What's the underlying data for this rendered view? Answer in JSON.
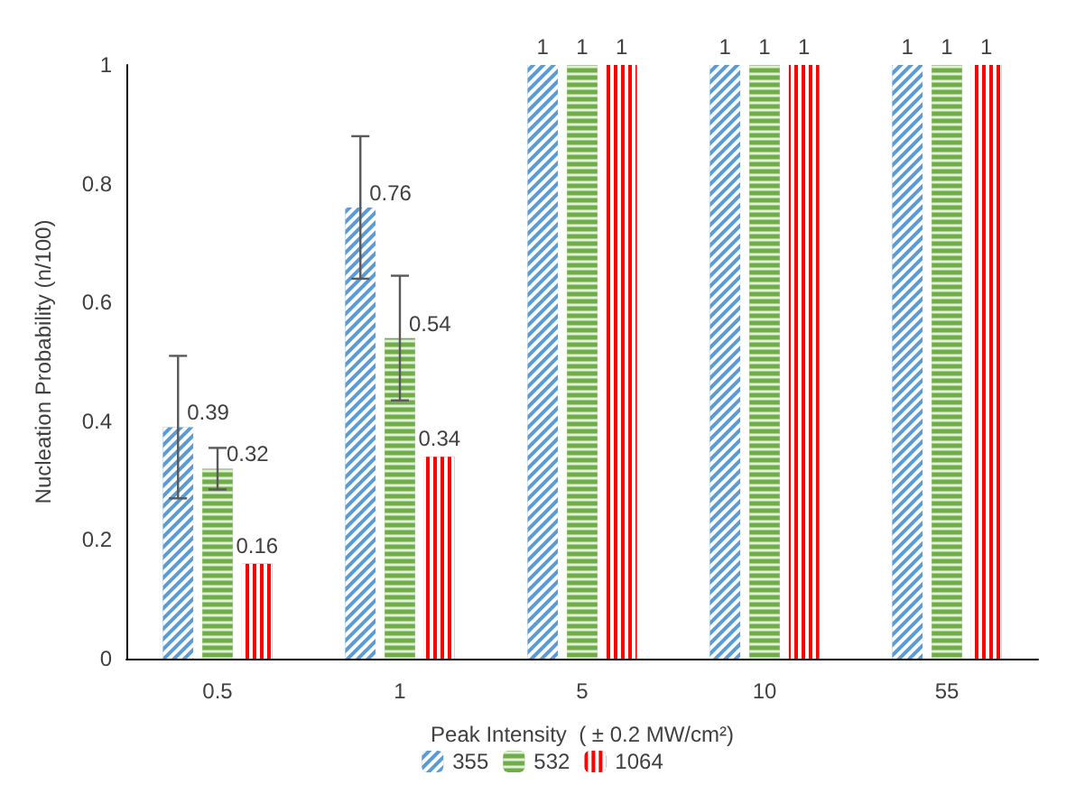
{
  "chart_data": {
    "type": "bar",
    "xlabel": "Peak Intensity  ( ± 0.2 MW/cm²)",
    "ylabel": "Nucleation Probability (n/100)",
    "categories": [
      "0.5",
      "1",
      "5",
      "10",
      "55"
    ],
    "series": [
      {
        "name": "355",
        "color": "#5b9bd5",
        "values": [
          0.39,
          0.76,
          1,
          1,
          1
        ],
        "errors": [
          0.12,
          0.12,
          null,
          null,
          null
        ]
      },
      {
        "name": "532",
        "color": "#70ad47",
        "values": [
          0.32,
          0.54,
          1,
          1,
          1
        ],
        "errors": [
          0.035,
          0.105,
          null,
          null,
          null
        ]
      },
      {
        "name": "1064",
        "color": "#ff0000",
        "values": [
          0.16,
          0.34,
          1,
          1,
          1
        ],
        "errors": [
          null,
          null,
          null,
          null,
          null
        ]
      }
    ],
    "ylim": [
      0,
      1
    ],
    "yticks": [
      0,
      0.2,
      0.4,
      0.6,
      0.8,
      1
    ],
    "grid": false,
    "legend": "bottom",
    "data_labels": true
  }
}
